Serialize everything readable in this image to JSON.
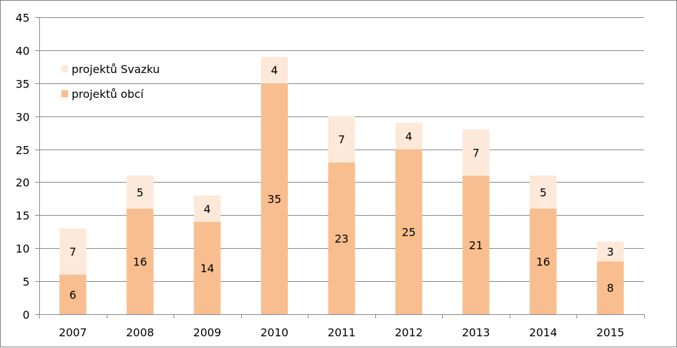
{
  "chart_data": {
    "type": "bar",
    "stacked": true,
    "categories": [
      "2007",
      "2008",
      "2009",
      "2010",
      "2011",
      "2012",
      "2013",
      "2014",
      "2015"
    ],
    "series": [
      {
        "name": "projektů obcí",
        "values": [
          6,
          16,
          14,
          35,
          23,
          25,
          21,
          16,
          8
        ],
        "color": "#f9be8f"
      },
      {
        "name": "projektů Svazku",
        "values": [
          7,
          5,
          4,
          4,
          7,
          4,
          7,
          5,
          3
        ],
        "color": "#fde9d9"
      }
    ],
    "ylim": [
      0,
      45
    ],
    "yticks": [
      "0",
      "5",
      "10",
      "15",
      "20",
      "25",
      "30",
      "35",
      "40",
      "45"
    ],
    "grid": true,
    "legend_position": "top-left",
    "legend_order": [
      "projektů Svazku",
      "projektů obcí"
    ]
  }
}
